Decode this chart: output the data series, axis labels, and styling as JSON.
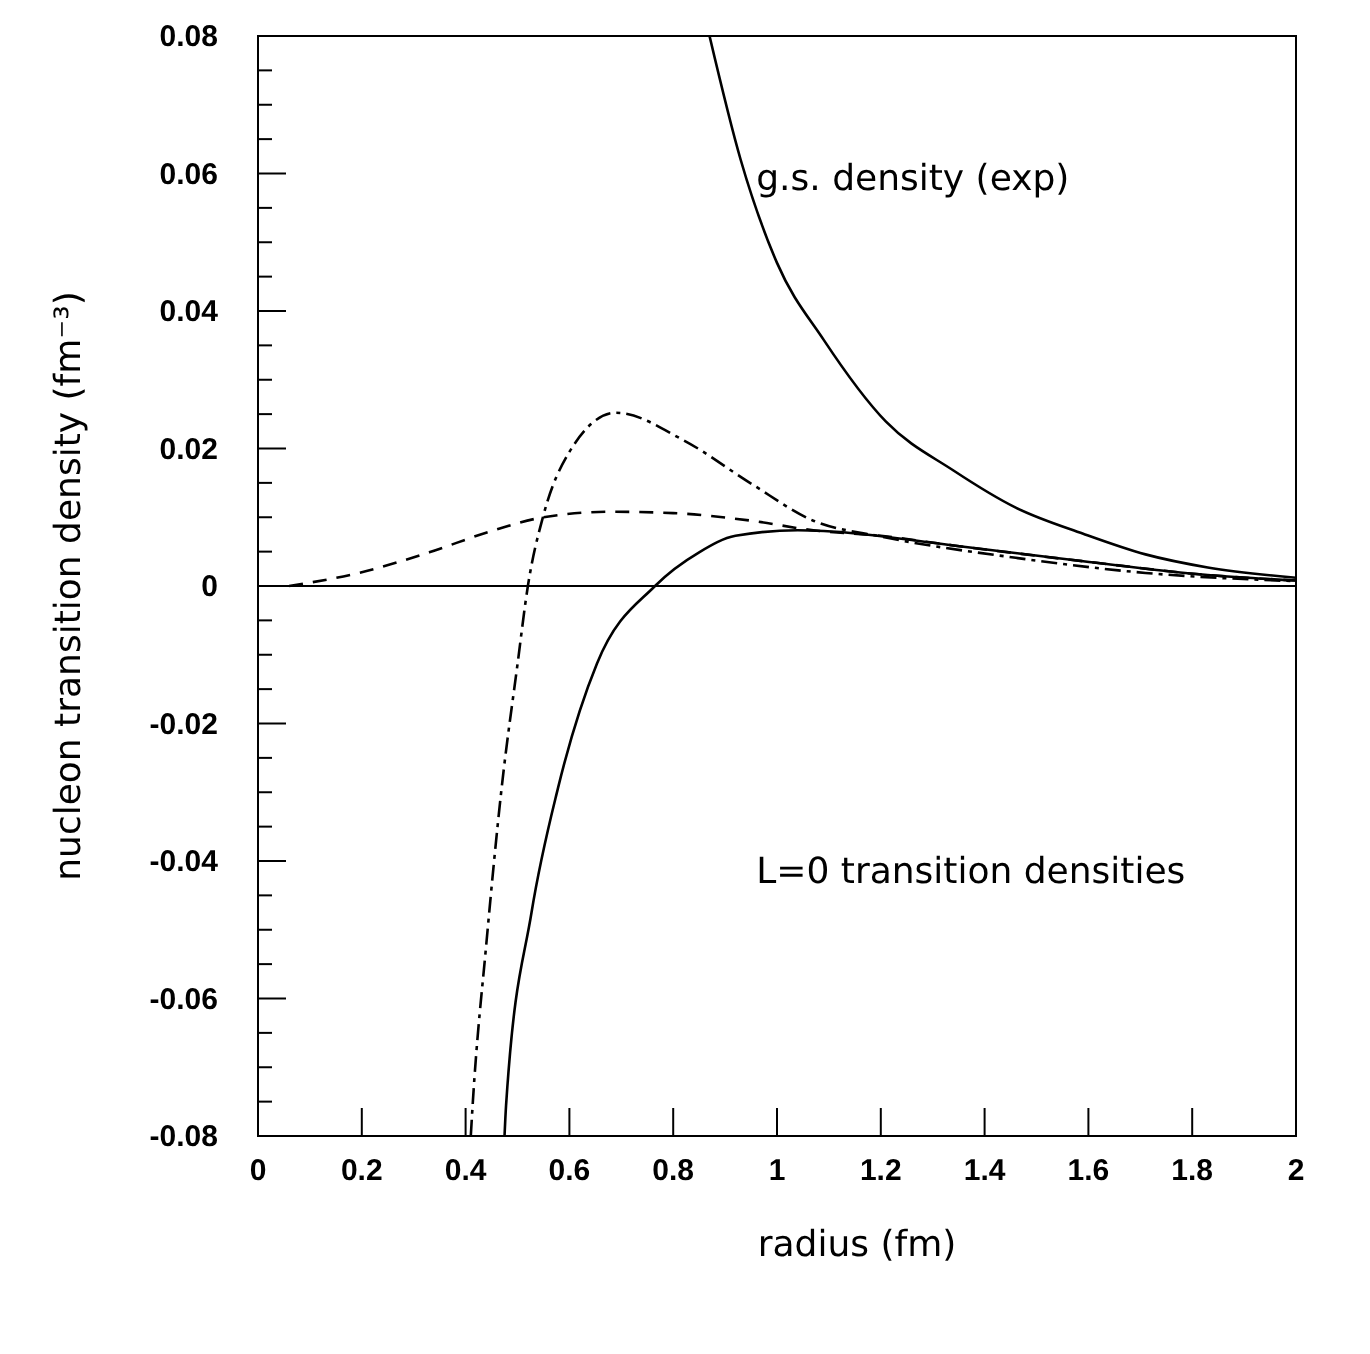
{
  "chart_data": {
    "type": "line",
    "xlabel": "radius (fm)",
    "ylabel": "nucleon transition density (fm⁻³)",
    "xlim": [
      0,
      2
    ],
    "ylim": [
      -0.08,
      0.08
    ],
    "xticks": [
      0,
      0.2,
      0.4,
      0.6,
      0.8,
      1,
      1.2,
      1.4,
      1.6,
      1.8,
      2
    ],
    "yticks": [
      -0.08,
      {
        "value": -0.075,
        "label": null
      },
      {
        "value": -0.07,
        "label": null
      },
      {
        "value": -0.065,
        "label": null
      },
      -0.06,
      {
        "value": -0.055,
        "label": null
      },
      {
        "value": -0.05,
        "label": null
      },
      {
        "value": -0.045,
        "label": null
      },
      -0.04,
      {
        "value": -0.035,
        "label": null
      },
      {
        "value": -0.03,
        "label": null
      },
      {
        "value": -0.025,
        "label": null
      },
      -0.02,
      {
        "value": -0.015,
        "label": null
      },
      {
        "value": -0.01,
        "label": null
      },
      {
        "value": -0.005,
        "label": null
      },
      0,
      {
        "value": 0.005,
        "label": null
      },
      {
        "value": 0.01,
        "label": null
      },
      {
        "value": 0.015,
        "label": null
      },
      0.02,
      {
        "value": 0.025,
        "label": null
      },
      {
        "value": 0.03,
        "label": null
      },
      {
        "value": 0.035,
        "label": null
      },
      0.04,
      {
        "value": 0.045,
        "label": null
      },
      {
        "value": 0.05,
        "label": null
      },
      {
        "value": 0.055,
        "label": null
      },
      0.06,
      {
        "value": 0.065,
        "label": null
      },
      {
        "value": 0.07,
        "label": null
      },
      {
        "value": 0.075,
        "label": null
      },
      0.08
    ],
    "grid": false,
    "ref_lines": [
      {
        "axis": "y",
        "value": 0,
        "color": "#000000"
      }
    ],
    "annotations": [
      "g.s. density (exp)",
      "L=0 transition densities"
    ],
    "series": [
      {
        "color": "#000000",
        "line_style": "solid",
        "x": [
          0.87,
          0.93,
          1.0,
          1.09,
          1.21,
          1.34,
          1.46,
          1.59,
          1.71,
          1.83,
          2
        ],
        "values": [
          0.08,
          0.062,
          0.047,
          0.0358,
          0.0239,
          0.0168,
          0.0114,
          0.0076,
          0.0046,
          0.0027,
          0.0012
        ]
      },
      {
        "color": "#000000",
        "line_style": "dashed",
        "x": [
          0.06,
          0.2,
          0.33,
          0.45,
          0.55,
          0.68,
          0.8,
          0.95,
          1.07,
          1.2,
          1.34,
          1.59,
          1.83,
          2
        ],
        "values": [
          0,
          0.002,
          0.0049,
          0.008,
          0.01,
          0.0108,
          0.0106,
          0.0095,
          0.0081,
          0.0073,
          0.0059,
          0.0036,
          0.0016,
          0.0008
        ]
      },
      {
        "color": "#000000",
        "line_style": "dashdot",
        "x": [
          0.41,
          0.414,
          0.44,
          0.47,
          0.5,
          0.52,
          0.55,
          0.6,
          0.69,
          0.82,
          0.95,
          1.07,
          1.2,
          1.46,
          1.71,
          2
        ],
        "values": [
          -0.08,
          -0.075,
          -0.052,
          -0.029,
          -0.0114,
          0,
          0.0103,
          0.0195,
          0.0252,
          0.0212,
          0.0149,
          0.0095,
          0.0072,
          0.0041,
          0.0019,
          0.0007
        ]
      },
      {
        "color": "#000000",
        "line_style": "solid",
        "x": [
          0.475,
          0.478,
          0.527,
          0.578,
          0.653,
          0.765,
          0.85,
          0.92,
          1.04,
          1.09,
          1.34,
          1.59,
          1.83,
          2
        ],
        "values": [
          -0.08,
          -0.0755,
          -0.0475,
          -0.0294,
          -0.0113,
          0,
          0.0049,
          0.0073,
          0.0081,
          0.008,
          0.0059,
          0.0036,
          0.0016,
          0.0008
        ]
      }
    ]
  }
}
